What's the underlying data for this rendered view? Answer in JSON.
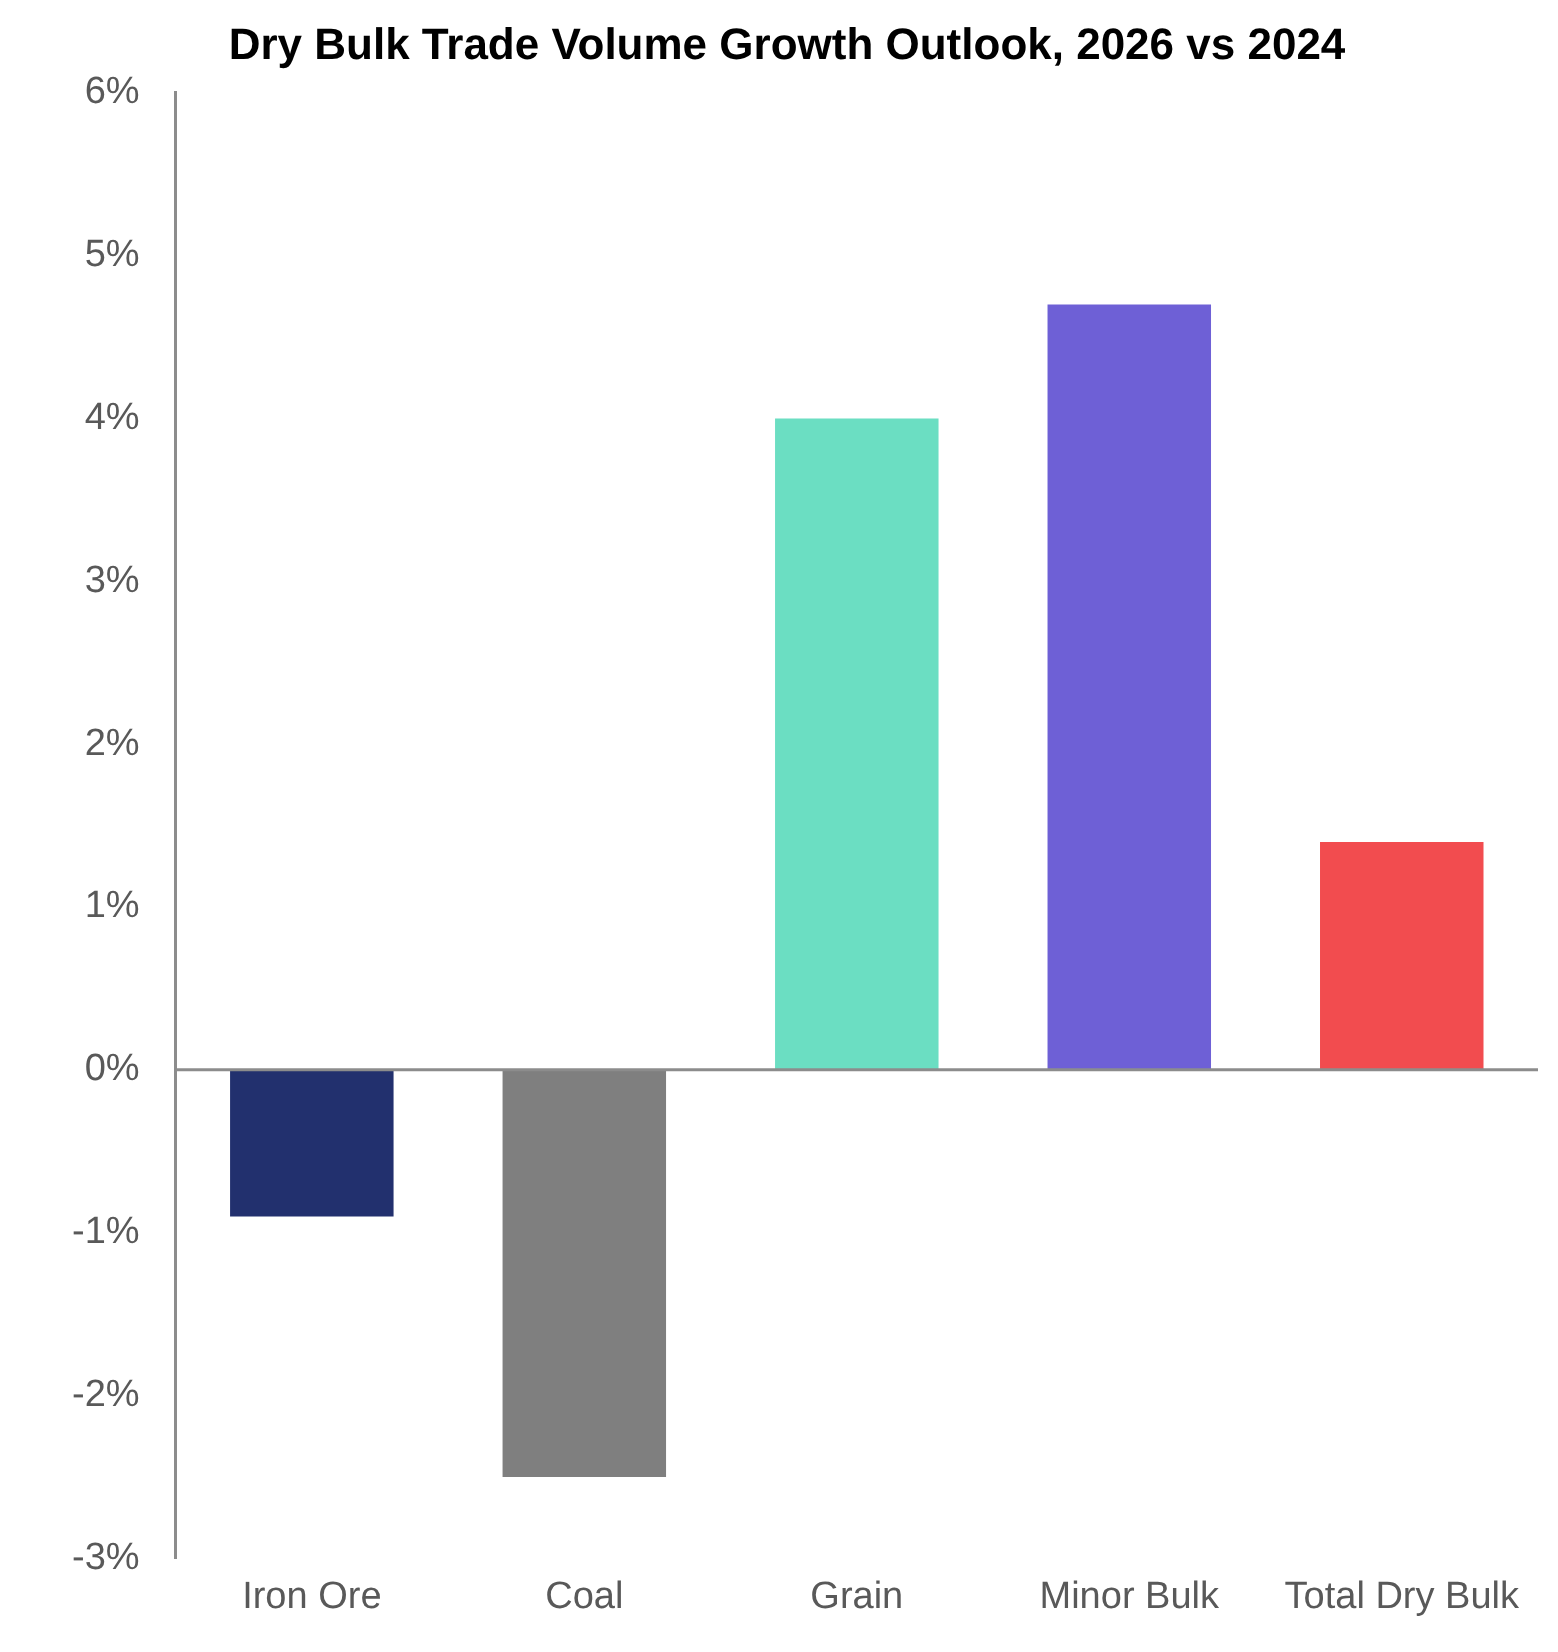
{
  "chart_data": {
    "type": "bar",
    "title": "Dry Bulk Trade Volume Growth Outlook, 2026 vs 2024",
    "categories": [
      "Iron Ore",
      "Coal",
      "Grain",
      "Minor Bulk",
      "Total Dry Bulk"
    ],
    "values": [
      -0.9,
      -2.5,
      4.0,
      4.7,
      1.4
    ],
    "colors": [
      "#22306e",
      "#7f7f7f",
      "#6bdec2",
      "#6e60d6",
      "#f24c4f"
    ],
    "ylim": [
      -3,
      6
    ],
    "yticks": [
      {
        "value": -3,
        "label": "-3%"
      },
      {
        "value": -2,
        "label": "-2%"
      },
      {
        "value": -1,
        "label": "-1%"
      },
      {
        "value": 0,
        "label": "0%"
      },
      {
        "value": 1,
        "label": "1%"
      },
      {
        "value": 2,
        "label": "2%"
      },
      {
        "value": 3,
        "label": "3%"
      },
      {
        "value": 4,
        "label": "4%"
      },
      {
        "value": 5,
        "label": "5%"
      },
      {
        "value": 6,
        "label": "6%"
      }
    ],
    "ref_lines": [
      {
        "axis": "y",
        "value": 0,
        "color": "#8c8c8c"
      }
    ],
    "legend": false
  }
}
